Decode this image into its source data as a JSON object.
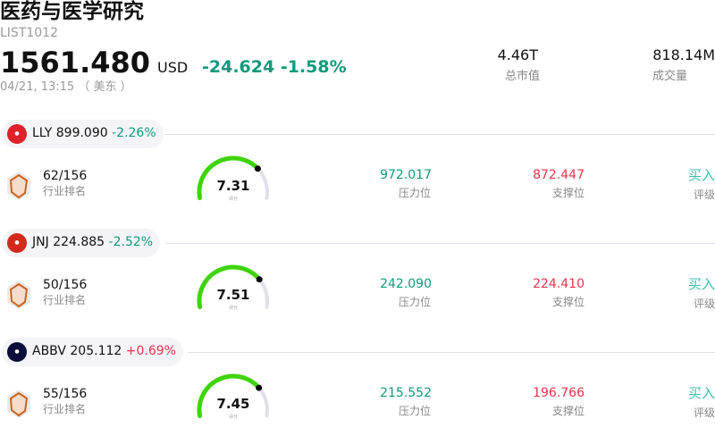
{
  "header": {
    "title": "医药与医学研究",
    "code": "LIST1012",
    "price": "1561.480",
    "currency": "USD",
    "change": "-24.624 -1.58%",
    "time": "04/21, 13:15 （ 美东 ）",
    "stats": [
      {
        "value": "4.46T",
        "label": "总市值"
      },
      {
        "value": "818.14M",
        "label": "成交量"
      }
    ]
  },
  "colors": {
    "up": "#e8344a",
    "down": "#119a7c",
    "gauge": "#3fd40a",
    "buy": "#3bbfb0"
  },
  "stocks": [
    {
      "ticker": "LLY",
      "price": "899.090",
      "change": "-2.26%",
      "dir": "down",
      "logo_color": "#e0202a",
      "rank": "62/156",
      "rank_label": "行业排名",
      "score": 7.31,
      "score_text": "7.31",
      "score_label": "评分",
      "resistance": "972.017",
      "resistance_label": "压力位",
      "support": "872.447",
      "support_label": "支撑位",
      "rating": "买入",
      "rating_label": "评级"
    },
    {
      "ticker": "JNJ",
      "price": "224.885",
      "change": "-2.52%",
      "dir": "down",
      "logo_color": "#d42a1e",
      "rank": "50/156",
      "rank_label": "行业排名",
      "score": 7.51,
      "score_text": "7.51",
      "score_label": "评分",
      "resistance": "242.090",
      "resistance_label": "压力位",
      "support": "224.410",
      "support_label": "支撑位",
      "rating": "买入",
      "rating_label": "评级"
    },
    {
      "ticker": "ABBV",
      "price": "205.112",
      "change": "+0.69%",
      "dir": "up",
      "logo_color": "#0b0f3a",
      "rank": "55/156",
      "rank_label": "行业排名",
      "score": 7.45,
      "score_text": "7.45",
      "score_label": "评分",
      "resistance": "215.552",
      "resistance_label": "压力位",
      "support": "196.766",
      "support_label": "支撑位",
      "rating": "买入",
      "rating_label": "评级"
    }
  ]
}
